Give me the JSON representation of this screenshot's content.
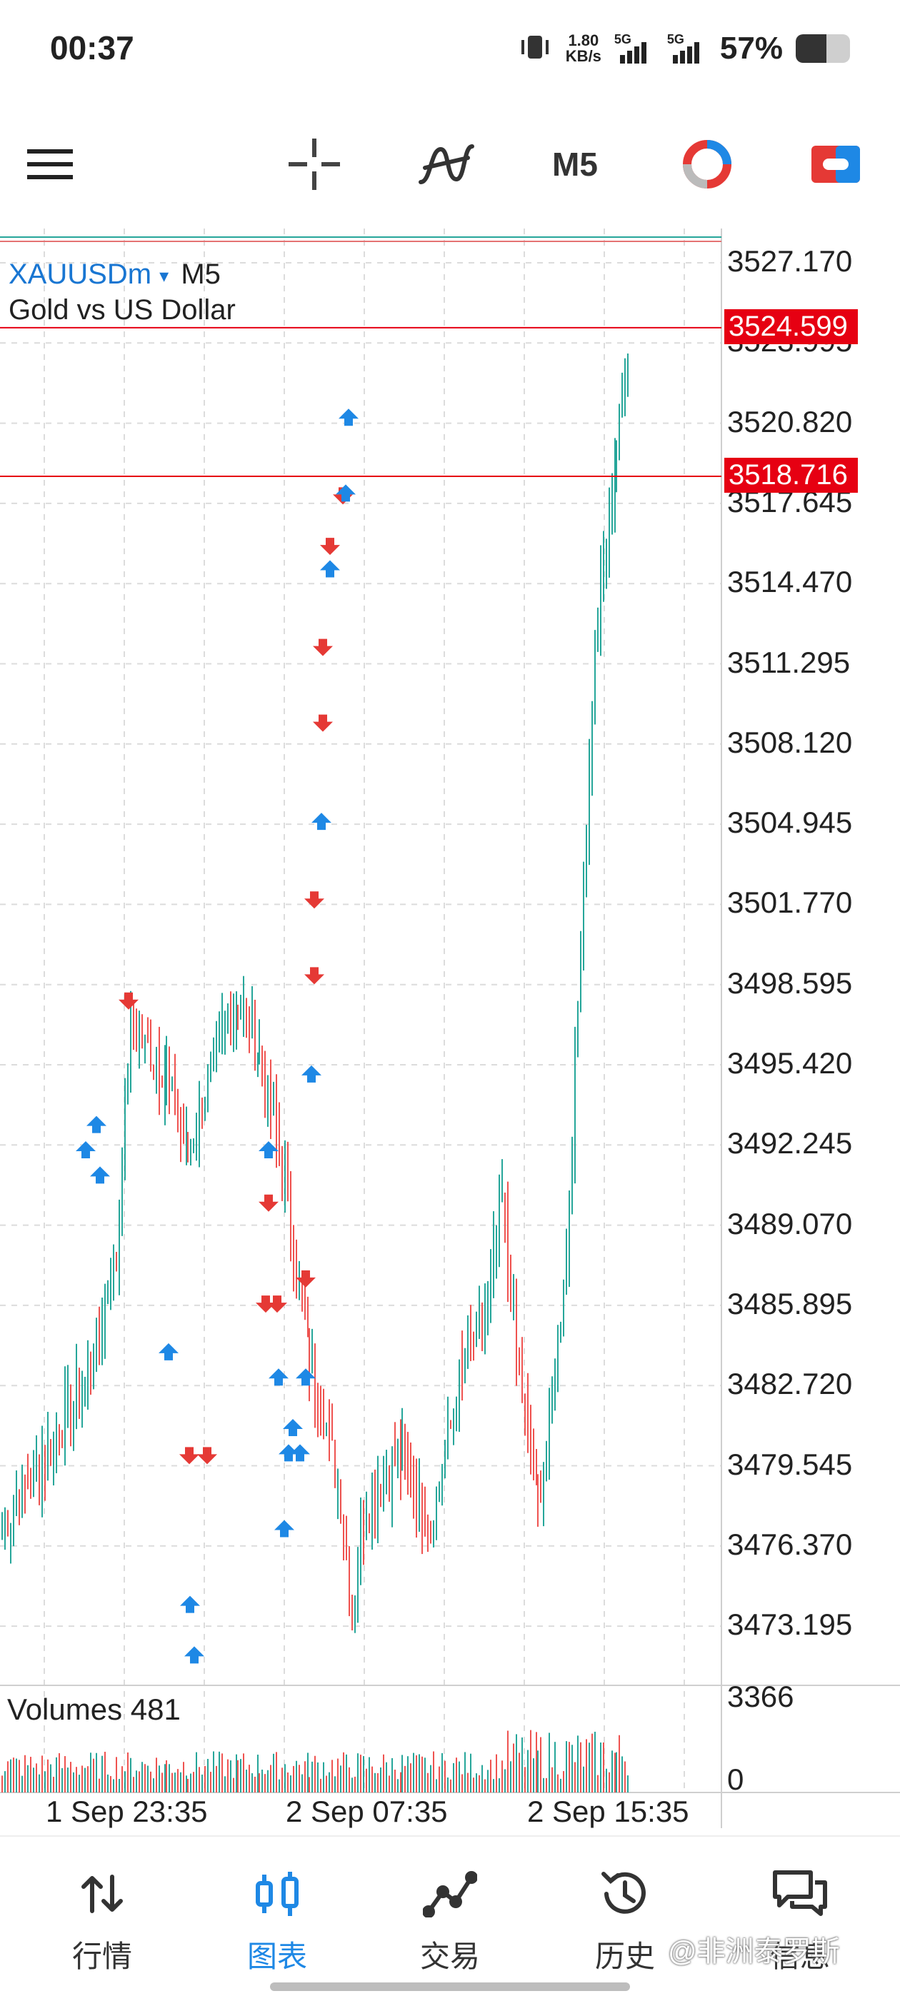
{
  "status_bar": {
    "time": "00:37",
    "net_speed_value": "1.80",
    "net_speed_unit": "KB/s",
    "sim1_label": "5G",
    "sim2_label": "5G",
    "battery_percent": "57%",
    "battery_level": 0.57
  },
  "toolbar": {
    "menu_icon": "hamburger-menu-icon",
    "crosshair_icon": "crosshair-icon",
    "indicators_icon": "indicators-icon",
    "timeframe": "M5",
    "trade_icon": "one-click-trading-icon",
    "account_icon": "account-icon"
  },
  "chart": {
    "symbol": "XAUUSDm",
    "dropdown_marker": "▾",
    "timeframe": "M5",
    "description": "Gold vs US Dollar",
    "price_axis": [
      "3527.170",
      "3523.995",
      "3520.820",
      "3517.645",
      "3514.470",
      "3511.295",
      "3508.120",
      "3504.945",
      "3501.770",
      "3498.595",
      "3495.420",
      "3492.245",
      "3489.070",
      "3485.895",
      "3482.720",
      "3479.545",
      "3476.370",
      "3473.195"
    ],
    "price_lines": [
      {
        "label": "3524.599",
        "color": "#e60012"
      },
      {
        "label": "3518.716",
        "color": "#e60012"
      }
    ],
    "volume_label": "Volumes 481",
    "volume_axis": [
      "3366",
      "0"
    ],
    "time_axis": [
      "1 Sep 23:35",
      "2 Sep 07:35",
      "2 Sep 15:35"
    ],
    "bull_color": "#26a69a",
    "bear_color": "#ef5350",
    "buy_arrow_color": "#1e88e5",
    "sell_arrow_color": "#e53935"
  },
  "bottom_nav": [
    {
      "label": "行情",
      "icon": "quotes-icon",
      "active": false
    },
    {
      "label": "图表",
      "icon": "chart-icon",
      "active": true
    },
    {
      "label": "交易",
      "icon": "trade-icon",
      "active": false
    },
    {
      "label": "历史",
      "icon": "history-icon",
      "active": false
    },
    {
      "label": "信息",
      "icon": "messages-icon",
      "active": false
    }
  ],
  "watermark": "@非洲泰罗斯"
}
